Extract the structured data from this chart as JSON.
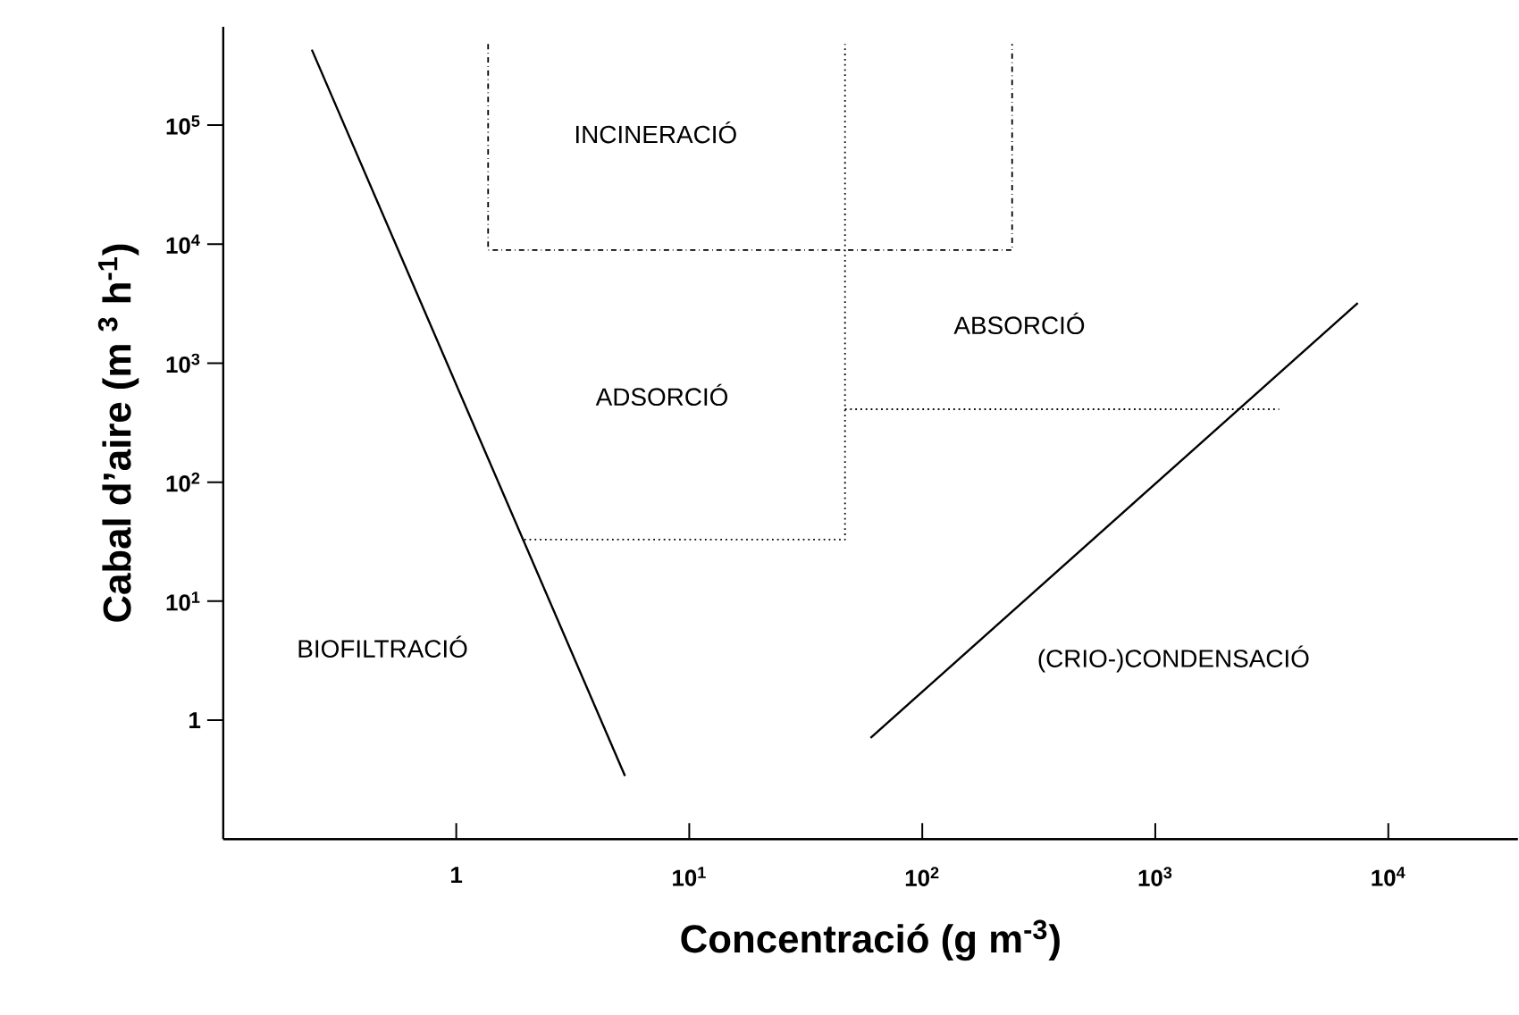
{
  "chart_data": {
    "type": "line",
    "xlabel": "Concentració (g m$^{-3}$)",
    "ylabel": "Cabal d’aire (m $^{3}$ h$^{-1}$)",
    "log": "xy",
    "xlim": [
      0.1,
      36000
    ],
    "ylim": [
      0.1,
      670000
    ],
    "xticks": [
      1,
      {
        "value": 10,
        "label": "10$^{1}$"
      },
      {
        "value": 100,
        "label": "10$^{2}$"
      },
      {
        "value": 1000,
        "label": "10$^{3}$"
      },
      {
        "value": 10000,
        "label": "10$^{4}$"
      }
    ],
    "yticks": [
      1,
      {
        "value": 10,
        "label": "10$^{1}$"
      },
      {
        "value": 100,
        "label": "10$^{2}$"
      },
      {
        "value": 1000,
        "label": "10$^{3}$"
      },
      {
        "value": 10000,
        "label": "10$^{4}$"
      },
      {
        "value": 100000,
        "label": "10$^{5}$"
      }
    ],
    "series": [
      {
        "color": "#000000",
        "line_style": "solid",
        "x": [
          0.24,
          5.3
        ],
        "values": [
          430000,
          0.34
        ]
      },
      {
        "color": "#000000",
        "line_style": "solid",
        "x": [
          60,
          7400
        ],
        "values": [
          0.71,
          3200
        ]
      },
      {
        "color": "#000000",
        "line_style": "dotted",
        "x": [
          1.96,
          46.6,
          46.6
        ],
        "values": [
          33,
          33,
          480000
        ]
      },
      {
        "color": "#000000",
        "line_style": "dotted",
        "x": [
          46.6,
          3400
        ],
        "values": [
          410,
          410
        ]
      },
      {
        "color": "#000000",
        "line_style": "dashdot",
        "x": [
          1.37,
          1.37,
          243,
          243
        ],
        "values": [
          480000,
          8900,
          8900,
          480000
        ]
      }
    ],
    "annotations": [
      "INCINERACIÓ",
      "ADSORCIÓ",
      "ABSORCIÓ",
      "BIOFILTRACIÓ",
      "(CRIO-)CONDENSACIÓ"
    ]
  }
}
